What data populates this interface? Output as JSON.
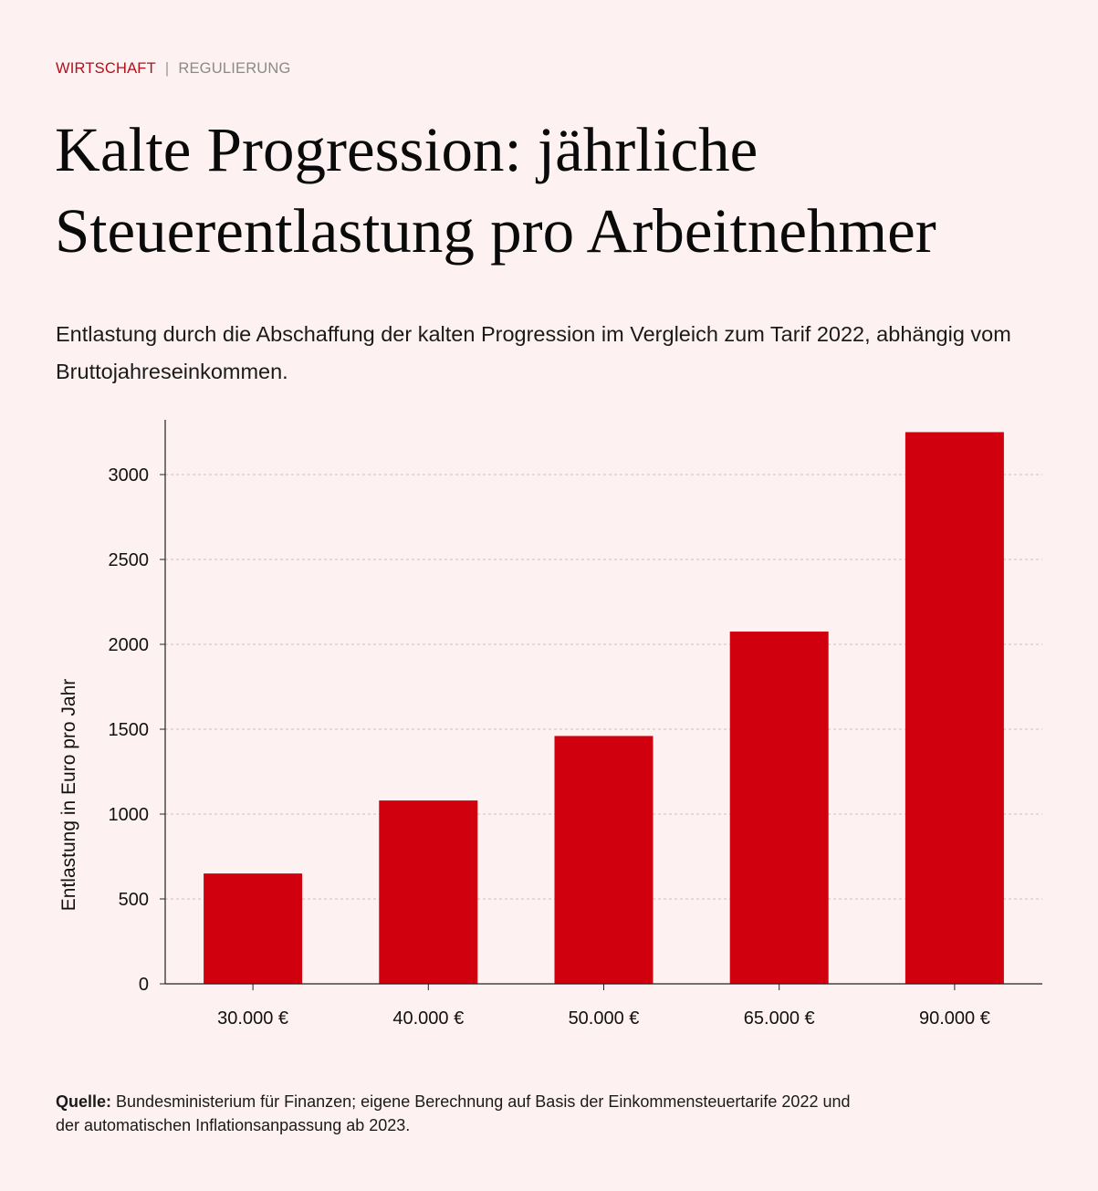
{
  "kicker": {
    "primary": "WIRTSCHAFT",
    "separator": "|",
    "secondary": "REGULIERUNG"
  },
  "title": "Kalte Progression: jährliche Steuerentlastung pro Arbeitnehmer",
  "subtitle": "Entlastung durch die Abschaffung der kalten Progression im Vergleich zum Tarif 2022, abhängig vom Bruttojahreseinkommen.",
  "source": {
    "label": "Quelle:",
    "text": "Bundesministerium für Finanzen; eigene Berechnung auf Basis der Einkommensteuertarife 2022 und der automatischen Inflationsanpassung ab 2023."
  },
  "colors": {
    "bar": "#d0000f",
    "accent": "#b0101a",
    "background": "#fdf2f1"
  },
  "chart_data": {
    "type": "bar",
    "categories": [
      "30.000 €",
      "40.000 €",
      "50.000 €",
      "65.000 €",
      "90.000 €"
    ],
    "values": [
      650,
      1080,
      1460,
      2075,
      3250
    ],
    "xlabel": "",
    "ylabel": "Entlastung in Euro pro Jahr",
    "ylim": [
      0,
      3300
    ],
    "yticks": [
      0,
      500,
      1000,
      1500,
      2000,
      2500,
      3000
    ],
    "grid": true
  }
}
